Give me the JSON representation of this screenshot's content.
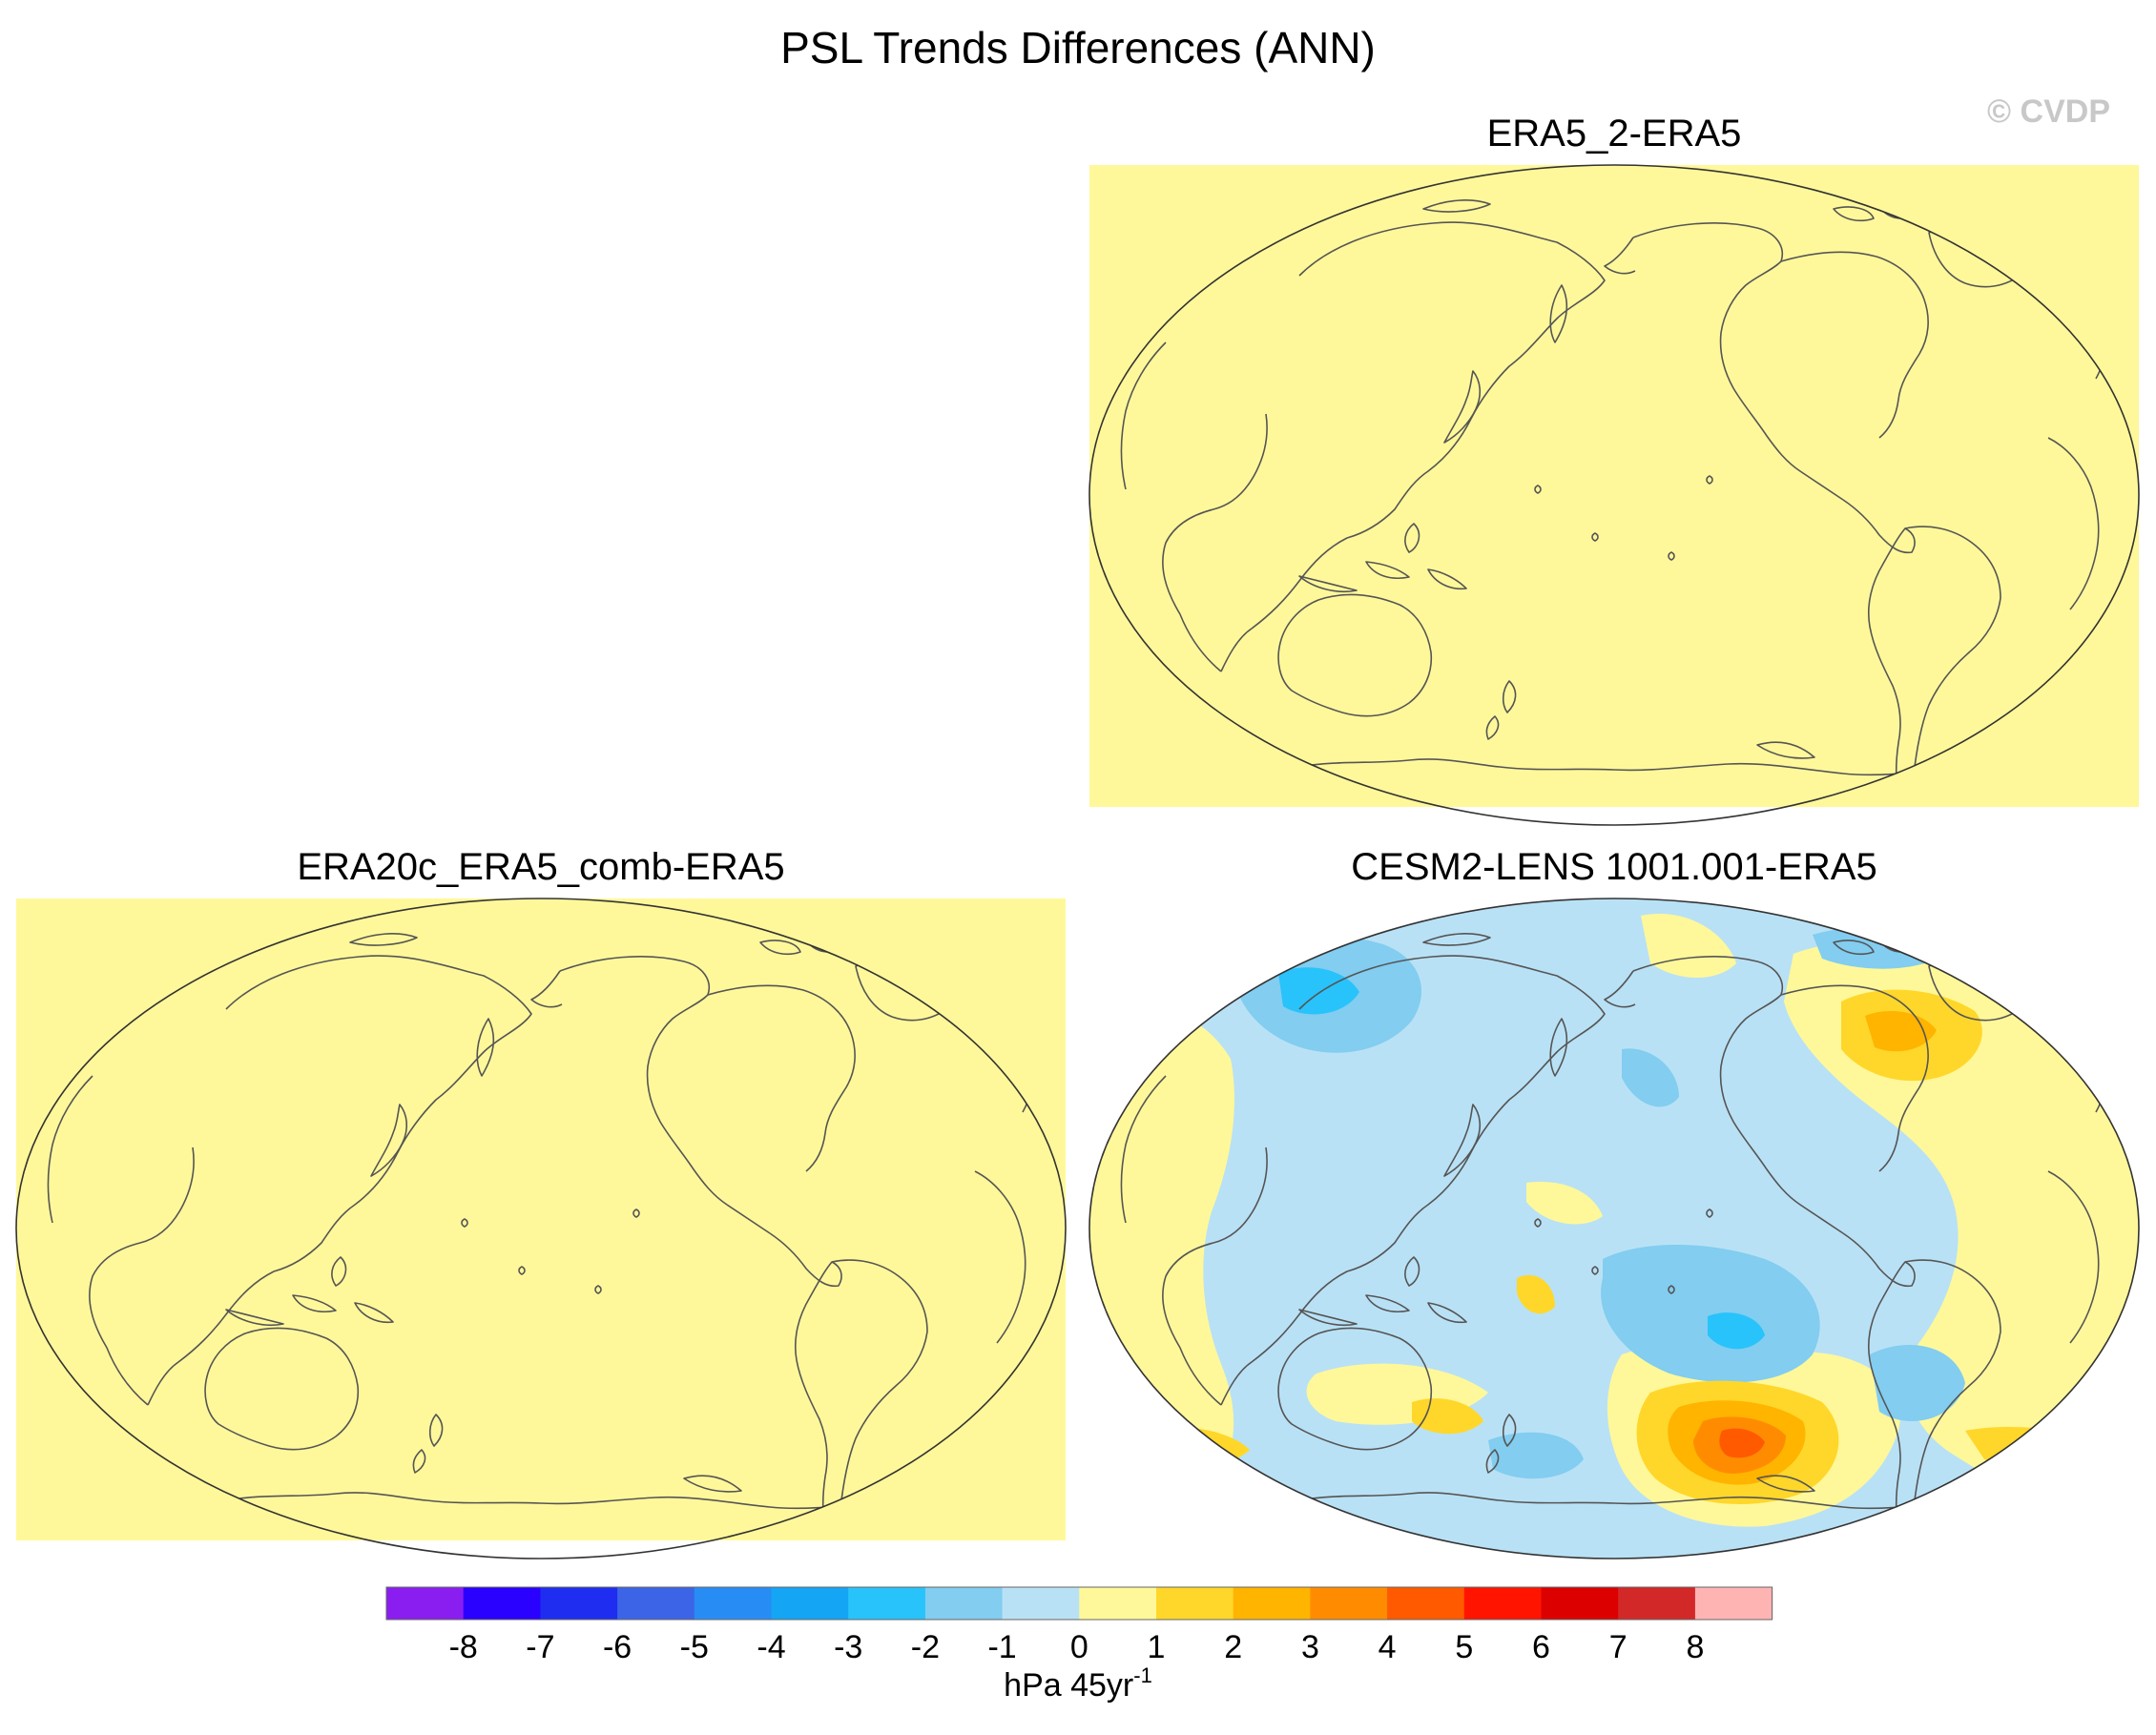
{
  "figure": {
    "title": "PSL Trends Differences (ANN)",
    "credit": "© CVDP"
  },
  "panels": [
    {
      "id": "era5_2",
      "title": "ERA5_2-ERA5",
      "field": "uniform",
      "level": "0 to 1"
    },
    {
      "id": "era20c",
      "title": "ERA20c_ERA5_comb-ERA5",
      "field": "uniform",
      "level": "0 to 1"
    },
    {
      "id": "cesm2",
      "title": "CESM2-LENS 1001.001-ERA5",
      "field": "anomaly",
      "level": "mixed"
    }
  ],
  "colorbar": {
    "units_base": "hPa 45yr",
    "units_exp": "-1",
    "tick_labels": [
      "-8",
      "-7",
      "-6",
      "-5",
      "-4",
      "-3",
      "-2",
      "-1",
      "0",
      "1",
      "2",
      "3",
      "4",
      "5",
      "6",
      "7",
      "8"
    ],
    "colors": [
      "#8a1ef0",
      "#2a00ff",
      "#1e2df0",
      "#3c64e6",
      "#288cf5",
      "#14a5f5",
      "#28c3fa",
      "#82cdf0",
      "#b9e1f5",
      "#fff89a",
      "#ffd72a",
      "#ffb400",
      "#ff8c00",
      "#ff5a00",
      "#ff1400",
      "#dc0000",
      "#d22828",
      "#ffb4b4"
    ]
  },
  "palette": {
    "uniform_fill": "#fff89a",
    "light_blue": "#b9e1f5",
    "mid_blue": "#82cdf0",
    "cyan": "#28c3fa",
    "yellow": "#ffd72a",
    "orange": "#ffb400",
    "dark_orange": "#ff8c00",
    "red_orange": "#ff5a00"
  }
}
